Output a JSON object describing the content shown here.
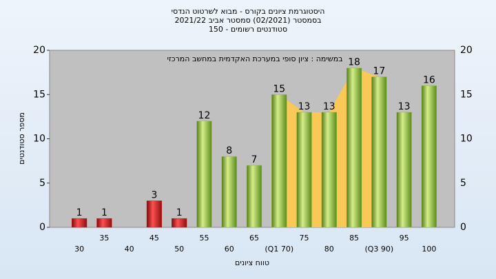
{
  "chart_data": {
    "type": "bar",
    "title": "היסטוגרמת ציונים בקורס - מבוא לשרטוט הנדסי",
    "subtitle": "בסמסטר  (02/2021)  סמסטר אביב  2021/22",
    "subtitle2": "סטודנטים רשומים - 150",
    "annotation": "במשימה : ציון סופי במערכת האקדמית במחשב המרכזי",
    "x_label": "טווח ציונים",
    "y_label": "מספר סטודנטים",
    "categories": [
      "30",
      "35",
      "40",
      "45",
      "50",
      "55",
      "60",
      "65",
      "(Q1 70)",
      "75",
      "80",
      "85",
      "(Q3 90)",
      "95",
      "100"
    ],
    "values": [
      1,
      1,
      null,
      3,
      1,
      12,
      8,
      7,
      15,
      13,
      13,
      18,
      17,
      13,
      16
    ],
    "colors": [
      "#d42020",
      "#d42020",
      "#d42020",
      "#d42020",
      "#d42020",
      "#8fbf3a",
      "#8fbf3a",
      "#8fbf3a",
      "#8fbf3a",
      "#8fbf3a",
      "#8fbf3a",
      "#8fbf3a",
      "#8fbf3a",
      "#8fbf3a",
      "#8fbf3a"
    ],
    "quartile_band": [
      8,
      12
    ],
    "ylim": [
      0,
      20
    ],
    "yticks": [
      0,
      5,
      10,
      15,
      20
    ],
    "grid": false
  }
}
